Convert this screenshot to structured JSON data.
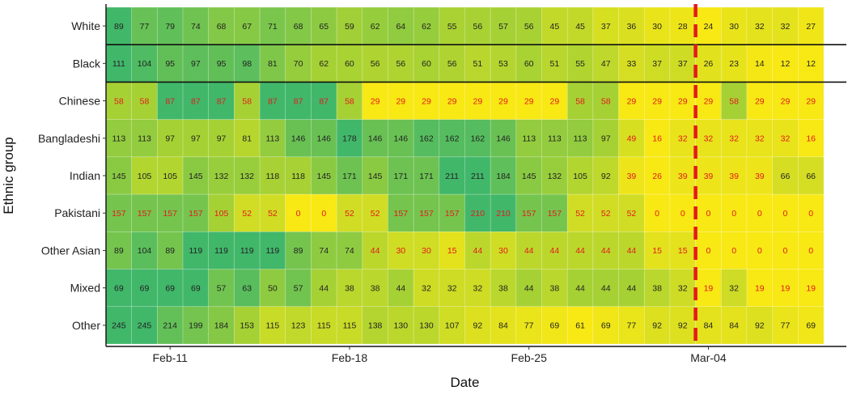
{
  "chart_data": {
    "type": "heatmap",
    "xlabel": "Date",
    "ylabel": "Ethnic group",
    "x_tick_labels": [
      "Feb-11",
      "Feb-18",
      "Feb-25",
      "Mar-04"
    ],
    "x_tick_column_index": [
      2,
      9,
      16,
      23
    ],
    "vline_after_column_index": 22,
    "vline_color": "#e41a1c",
    "separator_after_rows": [
      "White",
      "Black"
    ],
    "low_value_label_color": "#e41a1c",
    "high_value_label_color": "#222222",
    "rows": [
      {
        "group": "White",
        "values": [
          89,
          77,
          79,
          74,
          68,
          67,
          71,
          68,
          65,
          59,
          62,
          64,
          62,
          55,
          56,
          57,
          56,
          45,
          45,
          37,
          36,
          30,
          28,
          24,
          30,
          32,
          32,
          27
        ],
        "flagged": [
          false,
          false,
          false,
          false,
          false,
          false,
          false,
          false,
          false,
          false,
          false,
          false,
          false,
          false,
          false,
          false,
          false,
          false,
          false,
          false,
          false,
          false,
          false,
          false,
          false,
          false,
          false,
          false
        ]
      },
      {
        "group": "Black",
        "values": [
          111,
          104,
          95,
          97,
          95,
          98,
          81,
          70,
          62,
          60,
          56,
          56,
          60,
          56,
          51,
          53,
          60,
          51,
          55,
          47,
          33,
          37,
          37,
          26,
          23,
          14,
          12,
          12
        ],
        "flagged": [
          false,
          false,
          false,
          false,
          false,
          false,
          false,
          false,
          false,
          false,
          false,
          false,
          false,
          false,
          false,
          false,
          false,
          false,
          false,
          false,
          false,
          false,
          false,
          false,
          false,
          false,
          false,
          false
        ]
      },
      {
        "group": "Chinese",
        "values": [
          58,
          58,
          87,
          87,
          87,
          58,
          87,
          87,
          87,
          58,
          29,
          29,
          29,
          29,
          29,
          29,
          29,
          29,
          58,
          58,
          29,
          29,
          29,
          29,
          58,
          29,
          29,
          29
        ],
        "flagged": [
          true,
          true,
          true,
          true,
          true,
          true,
          true,
          true,
          true,
          true,
          true,
          true,
          true,
          true,
          true,
          true,
          true,
          true,
          true,
          true,
          true,
          true,
          true,
          true,
          true,
          true,
          true,
          true
        ]
      },
      {
        "group": "Bangladeshi",
        "values": [
          113,
          113,
          97,
          97,
          97,
          81,
          113,
          146,
          146,
          178,
          146,
          146,
          162,
          162,
          162,
          146,
          113,
          113,
          113,
          97,
          49,
          16,
          32,
          32,
          32,
          32,
          32,
          16
        ],
        "flagged": [
          false,
          false,
          false,
          false,
          false,
          false,
          false,
          false,
          false,
          false,
          false,
          false,
          false,
          false,
          false,
          false,
          false,
          false,
          false,
          false,
          true,
          true,
          true,
          true,
          true,
          true,
          true,
          true
        ]
      },
      {
        "group": "Indian",
        "values": [
          145,
          105,
          105,
          145,
          132,
          132,
          118,
          118,
          145,
          171,
          145,
          171,
          171,
          211,
          211,
          184,
          145,
          132,
          105,
          92,
          39,
          26,
          39,
          39,
          39,
          39,
          66,
          66
        ],
        "flagged": [
          false,
          false,
          false,
          false,
          false,
          false,
          false,
          false,
          false,
          false,
          false,
          false,
          false,
          false,
          false,
          false,
          false,
          false,
          false,
          false,
          true,
          true,
          true,
          true,
          true,
          true,
          false,
          false
        ]
      },
      {
        "group": "Pakistani",
        "values": [
          157,
          157,
          157,
          157,
          105,
          52,
          52,
          0,
          0,
          52,
          52,
          157,
          157,
          157,
          210,
          210,
          157,
          157,
          52,
          52,
          52,
          0,
          0,
          0,
          0,
          0,
          0,
          0
        ],
        "flagged": [
          true,
          true,
          true,
          true,
          true,
          true,
          true,
          true,
          true,
          true,
          true,
          true,
          true,
          true,
          true,
          true,
          true,
          true,
          true,
          true,
          true,
          true,
          true,
          true,
          true,
          true,
          true,
          true
        ]
      },
      {
        "group": "Other Asian",
        "values": [
          89,
          104,
          89,
          119,
          119,
          119,
          119,
          89,
          74,
          74,
          44,
          30,
          30,
          15,
          44,
          30,
          44,
          44,
          44,
          44,
          44,
          15,
          15,
          0,
          0,
          0,
          0,
          0
        ],
        "flagged": [
          false,
          false,
          false,
          false,
          false,
          false,
          false,
          false,
          false,
          false,
          true,
          true,
          true,
          true,
          true,
          true,
          true,
          true,
          true,
          true,
          true,
          true,
          true,
          true,
          true,
          true,
          true,
          true
        ]
      },
      {
        "group": "Mixed",
        "values": [
          69,
          69,
          69,
          69,
          57,
          63,
          50,
          57,
          44,
          38,
          38,
          44,
          32,
          32,
          32,
          38,
          44,
          38,
          44,
          44,
          44,
          38,
          32,
          19,
          32,
          19,
          19,
          19
        ],
        "flagged": [
          false,
          false,
          false,
          false,
          false,
          false,
          false,
          false,
          false,
          false,
          false,
          false,
          false,
          false,
          false,
          false,
          false,
          false,
          false,
          false,
          false,
          false,
          false,
          true,
          false,
          true,
          true,
          true
        ]
      },
      {
        "group": "Other",
        "values": [
          245,
          245,
          214,
          199,
          184,
          153,
          115,
          123,
          115,
          115,
          138,
          130,
          130,
          107,
          92,
          84,
          77,
          69,
          61,
          69,
          77,
          92,
          92,
          84,
          84,
          92,
          77,
          69
        ],
        "flagged": [
          false,
          false,
          false,
          false,
          false,
          false,
          false,
          false,
          false,
          false,
          false,
          false,
          false,
          false,
          false,
          false,
          false,
          false,
          false,
          false,
          false,
          false,
          false,
          false,
          false,
          false,
          false,
          false
        ]
      }
    ]
  }
}
